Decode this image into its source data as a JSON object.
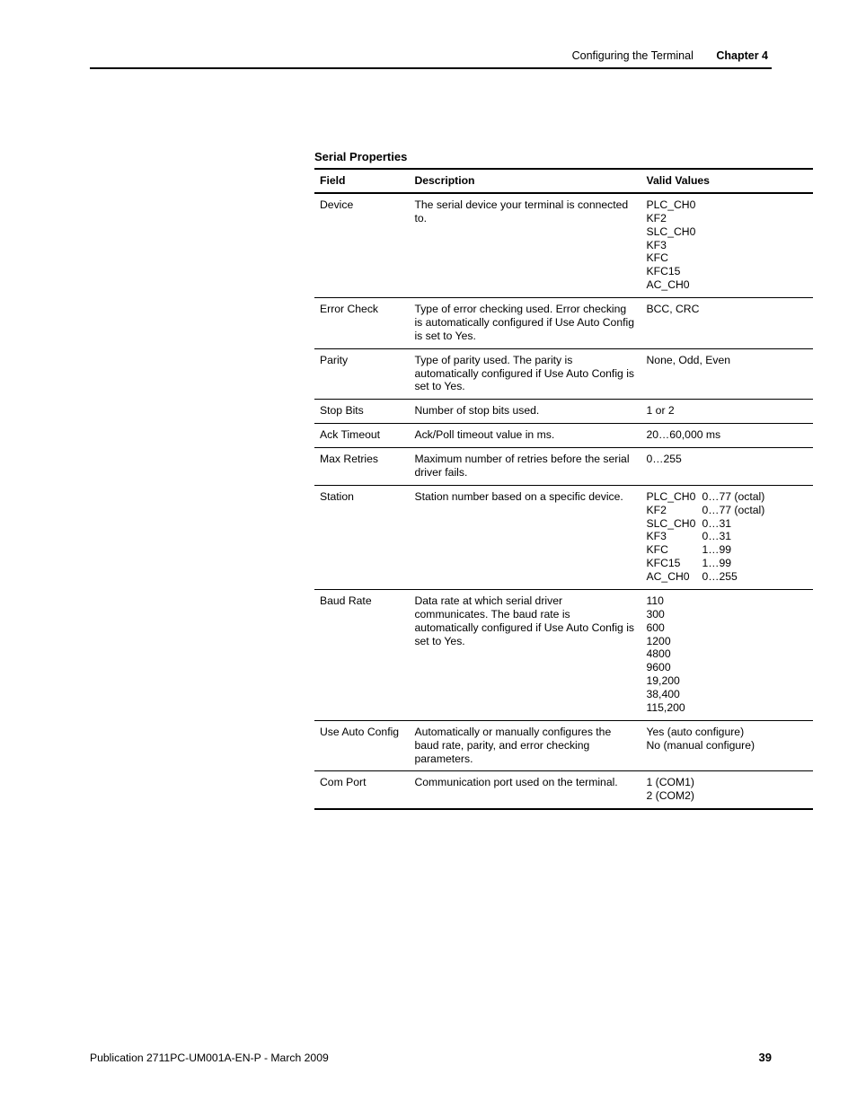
{
  "running_head": {
    "section": "Configuring the Terminal",
    "chapter": "Chapter 4"
  },
  "table_title": "Serial Properties",
  "columns": [
    "Field",
    "Description",
    "Valid Values"
  ],
  "rows": [
    {
      "field": "Device",
      "description": "The serial device your terminal is connected to.",
      "valid_lines": [
        "PLC_CH0",
        "KF2",
        "SLC_CH0",
        "KF3",
        "KFC",
        "KFC15",
        "AC_CH0"
      ]
    },
    {
      "field": "Error Check",
      "description": "Type of error checking used. Error checking is automatically configured if Use Auto Config is set to Yes.",
      "valid_lines": [
        "BCC, CRC"
      ]
    },
    {
      "field": "Parity",
      "description": "Type of parity used. The parity is automatically configured if Use Auto Config is set to Yes.",
      "valid_lines": [
        "None, Odd, Even"
      ]
    },
    {
      "field": "Stop Bits",
      "description": "Number of stop bits used.",
      "valid_lines": [
        "1 or 2"
      ]
    },
    {
      "field": "Ack Timeout",
      "description": "Ack/Poll timeout value in ms.",
      "valid_lines": [
        "20…60,000 ms"
      ]
    },
    {
      "field": "Max Retries",
      "description": "Maximum number of retries before the serial driver fails.",
      "valid_lines": [
        "0…255"
      ]
    },
    {
      "field": "Station",
      "description": "Station number based on a specific device.",
      "valid_pairs": [
        [
          "PLC_CH0",
          "0…77 (octal)"
        ],
        [
          "KF2",
          "0…77 (octal)"
        ],
        [
          "SLC_CH0",
          "0…31"
        ],
        [
          "KF3",
          "0…31"
        ],
        [
          "KFC",
          "1…99"
        ],
        [
          "KFC15",
          "1…99"
        ],
        [
          "AC_CH0",
          "0…255"
        ]
      ]
    },
    {
      "field": "Baud Rate",
      "description": "Data rate at which serial driver communicates. The baud rate is automatically configured if Use Auto Config is set to Yes.",
      "valid_lines": [
        "110",
        "300",
        "600",
        "1200",
        "4800",
        "9600",
        "19,200",
        "38,400",
        "115,200"
      ]
    },
    {
      "field": "Use Auto Config",
      "description": "Automatically or manually configures the baud rate, parity, and error checking parameters.",
      "valid_lines": [
        "Yes (auto configure)",
        "No (manual configure)"
      ]
    },
    {
      "field": "Com Port",
      "description": "Communication port used on the terminal.",
      "valid_lines": [
        "1 (COM1)",
        "2 (COM2)"
      ]
    }
  ],
  "footer": {
    "publication": "Publication 2711PC-UM001A-EN-P - March 2009",
    "page": "39"
  }
}
